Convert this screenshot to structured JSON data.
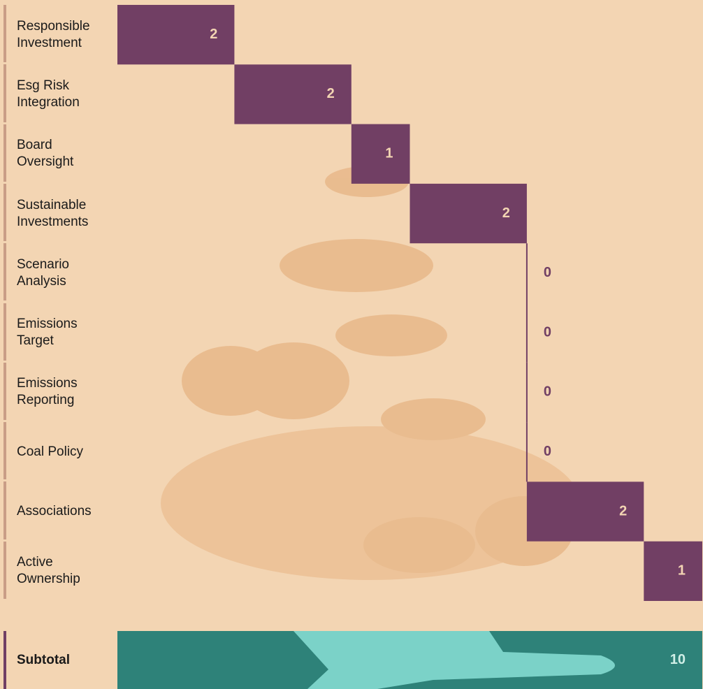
{
  "chart_data": {
    "type": "waterfall",
    "categories": [
      "Responsible Investment",
      "Esg Risk Integration",
      "Board Oversight",
      "Sustainable Investments",
      "Scenario Analysis",
      "Emissions Target",
      "Emissions Reporting",
      "Coal Policy",
      "Associations",
      "Active Ownership"
    ],
    "values": [
      2,
      2,
      1,
      2,
      0,
      0,
      0,
      0,
      2,
      1
    ],
    "color": "#713f64",
    "total": {
      "label": "Subtotal",
      "value": 10,
      "color": "#2e8279"
    },
    "xlim": [
      0,
      10
    ]
  }
}
